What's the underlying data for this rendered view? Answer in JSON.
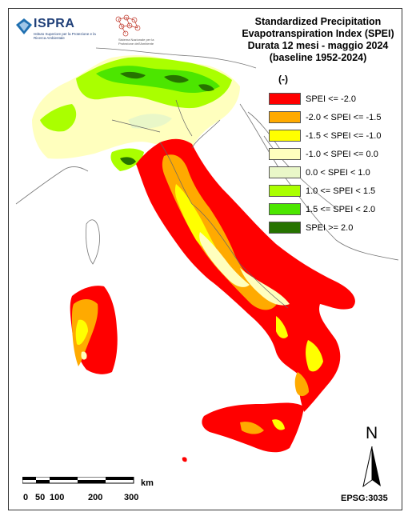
{
  "title_lines": [
    "Standardized Precipitation",
    "Evapotranspiration  Index (SPEI)",
    "Durata 12 mesi - maggio 2024",
    "(baseline 1952-2024)"
  ],
  "legend": {
    "unit": "(-)",
    "items": [
      {
        "label": "SPEI <= -2.0",
        "color": "#ff0000"
      },
      {
        "label": "-2.0 < SPEI <= -1.5",
        "color": "#ffaa00"
      },
      {
        "label": "-1.5 < SPEI <= -1.0",
        "color": "#ffff00"
      },
      {
        "label": "-1.0 < SPEI <= 0.0",
        "color": "#ffffbe"
      },
      {
        "label": "0.0 < SPEI < 1.0",
        "color": "#e9f7c8"
      },
      {
        "label": "1.0 <= SPEI < 1.5",
        "color": "#aaff00"
      },
      {
        "label": "1.5 <= SPEI < 2.0",
        "color": "#4ce600"
      },
      {
        "label": "SPEI >= 2.0",
        "color": "#267300"
      }
    ]
  },
  "logo": {
    "name": "ISPRA",
    "subtitle": "Istituto Superiore per la Protezione e la Ricerca Ambientale",
    "partner_text": "Sistema Nazionale per la Protezione dell'Ambiente"
  },
  "scale": {
    "ticks": [
      "0",
      "50",
      "100",
      "200",
      "300"
    ],
    "unit": "km"
  },
  "north": {
    "label": "N"
  },
  "projection": "EPSG:3035"
}
